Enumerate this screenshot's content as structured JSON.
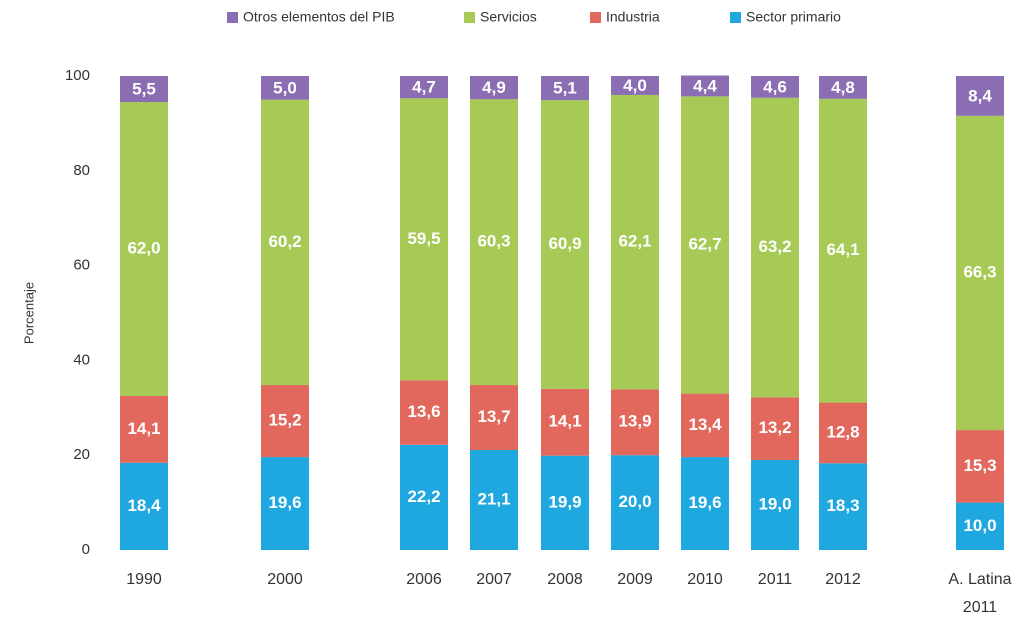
{
  "chart_data": {
    "type": "stacked_bar",
    "y_label": "Porcentaje",
    "categories": [
      "1990",
      "2000",
      "2006",
      "2007",
      "2008",
      "2009",
      "2010",
      "2011",
      "2012",
      "A. Latina\n2011"
    ],
    "series": [
      {
        "name": "Sector primario",
        "color": "#1fa7df",
        "values": [
          18.4,
          19.6,
          22.2,
          21.1,
          19.9,
          20.0,
          19.6,
          19.0,
          18.3,
          10.0
        ],
        "value_labels": [
          "18,4",
          "19,6",
          "22,2",
          "21,1",
          "19,9",
          "20,0",
          "19,6",
          "19,0",
          "18,3",
          "10,0"
        ]
      },
      {
        "name": "Industria",
        "color": "#e2675c",
        "values": [
          14.1,
          15.2,
          13.6,
          13.7,
          14.1,
          13.9,
          13.4,
          13.2,
          12.8,
          15.3
        ],
        "value_labels": [
          "14,1",
          "15,2",
          "13,6",
          "13,7",
          "14,1",
          "13,9",
          "13,4",
          "13,2",
          "12,8",
          "15,3"
        ]
      },
      {
        "name": "Servicios",
        "color": "#a6ca55",
        "values": [
          62.0,
          60.2,
          59.5,
          60.3,
          60.9,
          62.1,
          62.7,
          63.2,
          64.1,
          66.3
        ],
        "value_labels": [
          "62,0",
          "60,2",
          "59,5",
          "60,3",
          "60,9",
          "62,1",
          "62,7",
          "63,2",
          "64,1",
          "66,3"
        ]
      },
      {
        "name": "Otros elementos del PIB",
        "color": "#8a6db3",
        "values": [
          5.5,
          5.0,
          4.7,
          4.9,
          5.1,
          4.0,
          4.4,
          4.6,
          4.8,
          8.4
        ],
        "value_labels": [
          "5,5",
          "5,0",
          "4,7",
          "4,9",
          "5,1",
          "4,0",
          "4,4",
          "4,6",
          "4,8",
          "8,4"
        ]
      }
    ],
    "ylim": [
      0,
      100
    ],
    "yticks": [
      0,
      20,
      40,
      60,
      80,
      100
    ],
    "grid": false
  }
}
